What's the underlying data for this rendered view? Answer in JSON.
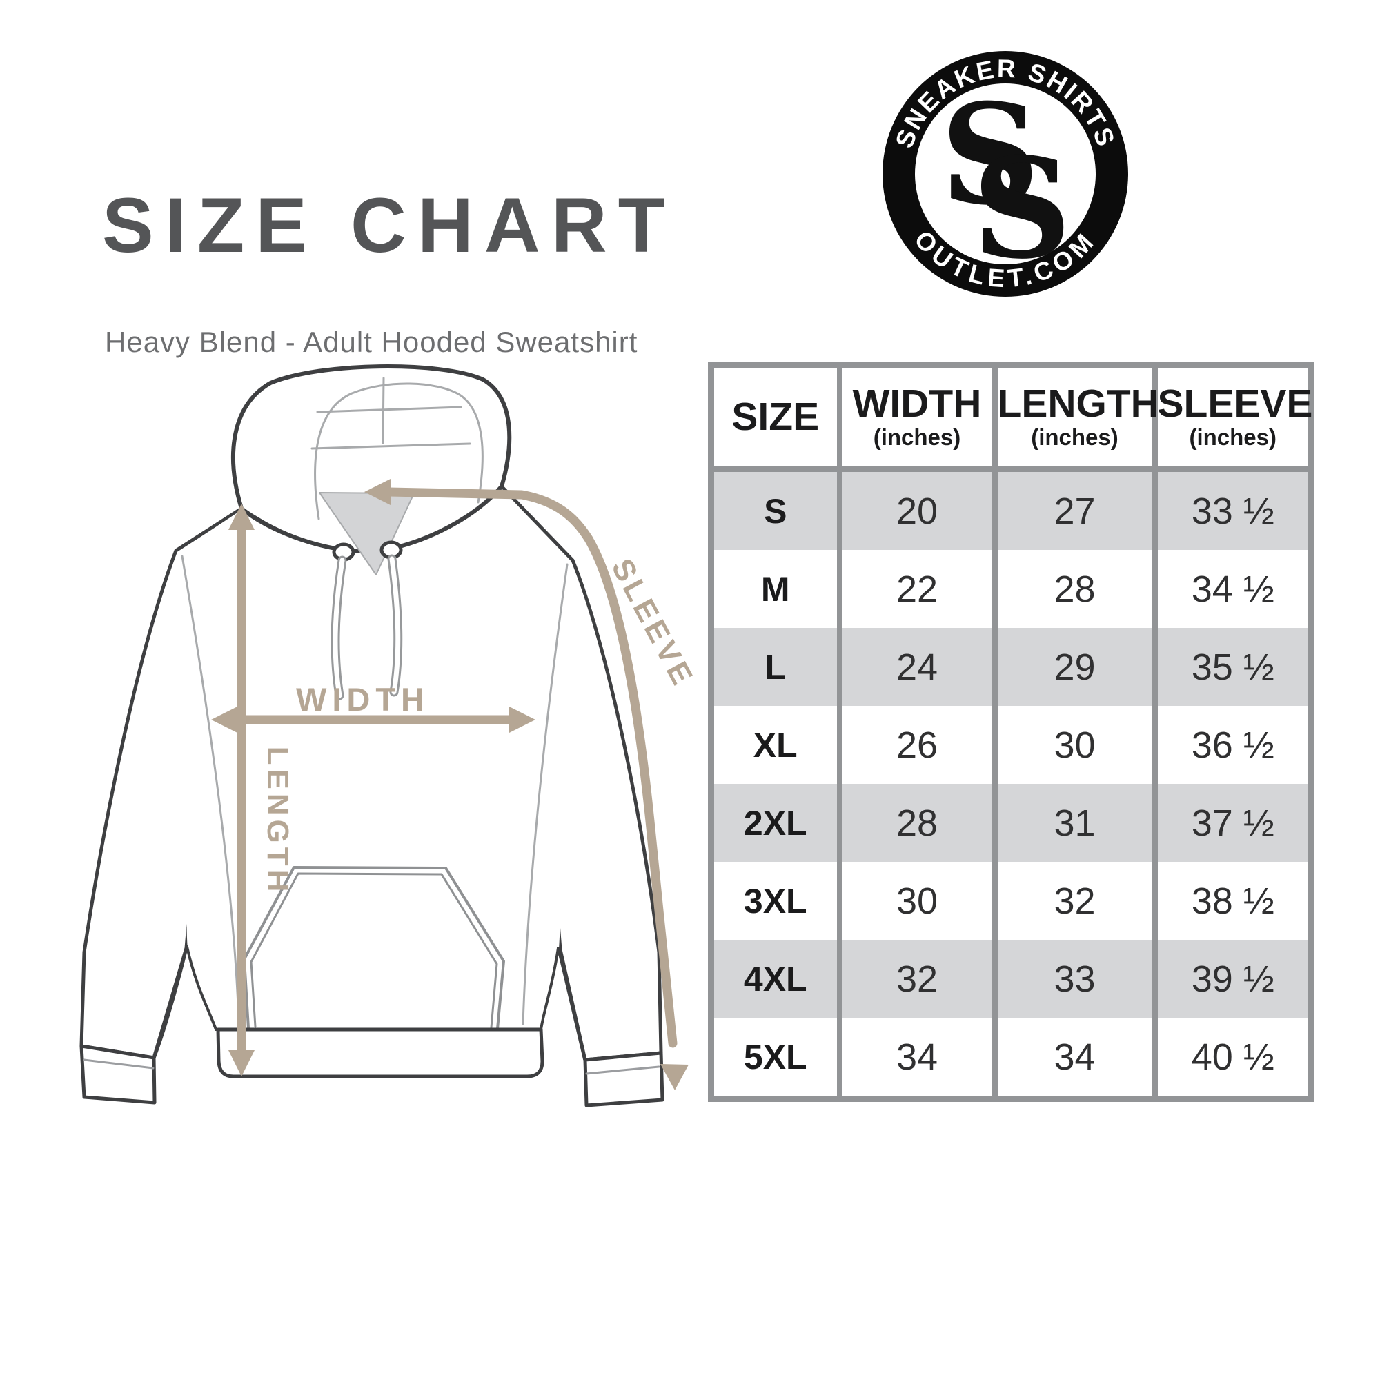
{
  "header": {
    "title": "SIZE CHART",
    "subtitle": "Heavy Blend - Adult Hooded Sweatshirt"
  },
  "logo": {
    "top_text": "SNEAKER SHIRTS",
    "bottom_text": "OUTLET.COM",
    "monogram": "SS",
    "ring_color": "#0c0c0c",
    "text_color": "#ffffff"
  },
  "diagram": {
    "product": "hooded sweatshirt line drawing",
    "width_label": "WIDTH",
    "length_label": "LENGTH",
    "sleeve_label": "SLEEVE",
    "arrow_color": "#b5a694",
    "outline_color": "#3e3f41",
    "seam_color": "#a8aaac",
    "hood_shade_color": "#d3d4d6"
  },
  "table": {
    "headers": [
      {
        "label": "SIZE",
        "sub": ""
      },
      {
        "label": "WIDTH",
        "sub": "(inches)"
      },
      {
        "label": "LENGTH",
        "sub": "(inches)"
      },
      {
        "label": "SLEEVE",
        "sub": "(inches)"
      }
    ],
    "rows": [
      [
        "S",
        "20",
        "27",
        "33 ½"
      ],
      [
        "M",
        "22",
        "28",
        "34 ½"
      ],
      [
        "L",
        "24",
        "29",
        "35 ½"
      ],
      [
        "XL",
        "26",
        "30",
        "36 ½"
      ],
      [
        "2XL",
        "28",
        "31",
        "37 ½"
      ],
      [
        "3XL",
        "30",
        "32",
        "38 ½"
      ],
      [
        "4XL",
        "32",
        "33",
        "39 ½"
      ],
      [
        "5XL",
        "34",
        "34",
        "40 ½"
      ]
    ],
    "border_color": "#929496",
    "alt_row_color": "#d5d6d8"
  }
}
